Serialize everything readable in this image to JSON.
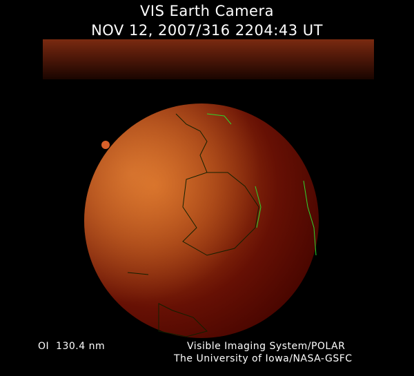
{
  "header": {
    "title": "VIS Earth Camera",
    "timestamp": "NOV 12, 2007/316 2204:43 UT"
  },
  "footer": {
    "filter": "OI  130.4 nm",
    "instrument": "Visible Imaging System/POLAR",
    "institution": "The University of Iowa/NASA-GSFC"
  },
  "colors": {
    "background": "#000000",
    "disk_dark": "#5a0a00",
    "glow": "#e07a2a",
    "coastline": "#2ed62e"
  }
}
